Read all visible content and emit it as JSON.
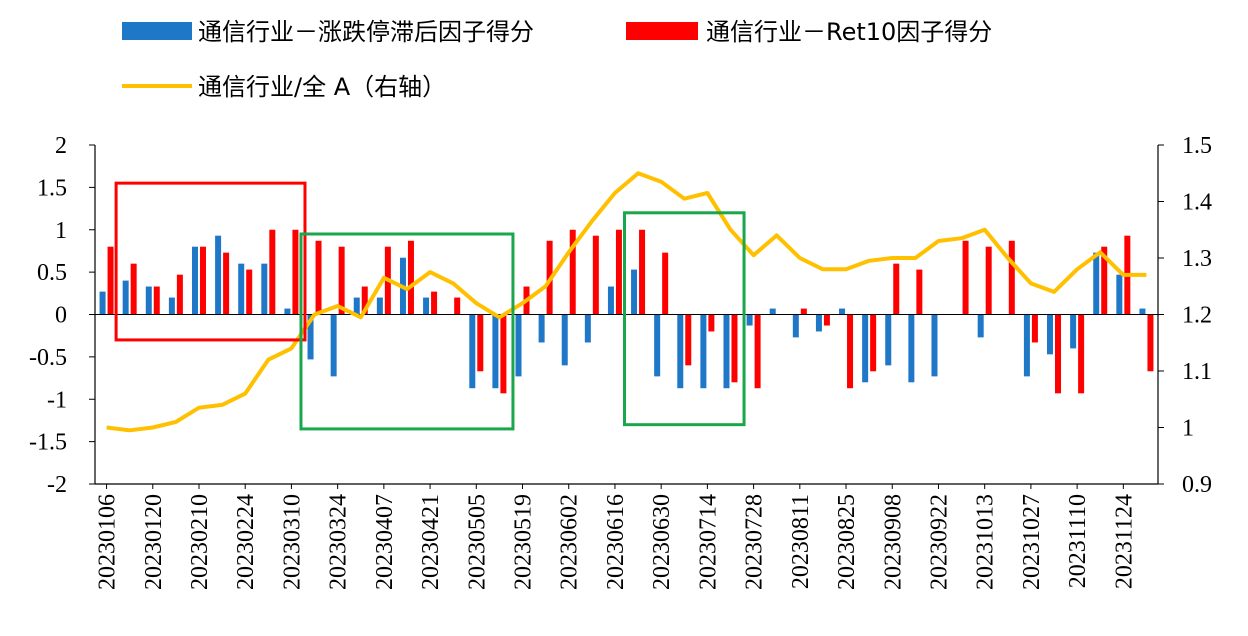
{
  "chart_data": {
    "type": "bar",
    "title": "",
    "legend": [
      {
        "label": "通信行业－涨跌停滞后因子得分",
        "color": "#1f77c8",
        "marker": "bar"
      },
      {
        "label": "通信行业－Ret10因子得分",
        "color": "#ff0000",
        "marker": "bar"
      },
      {
        "label": "通信行业/全 A（右轴）",
        "color": "#ffc000",
        "marker": "line"
      }
    ],
    "y_left": {
      "min": -2,
      "max": 2,
      "ticks": [
        "2",
        "1.5",
        "1",
        "0.5",
        "0",
        "-0.5",
        "-1",
        "-1.5",
        "-2"
      ]
    },
    "y_right": {
      "min": 0.9,
      "max": 1.5,
      "ticks": [
        "1.5",
        "1.4",
        "1.3",
        "1.2",
        "1.1",
        "1",
        "0.9"
      ]
    },
    "x_tick_labels": [
      "20230106",
      "20230120",
      "20230210",
      "20230224",
      "20230310",
      "20230324",
      "20230407",
      "20230421",
      "20230505",
      "20230519",
      "20230602",
      "20230616",
      "20230630",
      "20230714",
      "20230728",
      "20230811",
      "20230825",
      "20230908",
      "20230922",
      "20231013",
      "20231027",
      "20231110",
      "20231124"
    ],
    "periods": 46,
    "series": [
      {
        "name": "通信行业－涨跌停滞后因子得分",
        "axis": "left",
        "color": "#1f77c8",
        "values": [
          0.27,
          0.4,
          0.33,
          0.2,
          0.8,
          0.93,
          0.6,
          0.6,
          0.07,
          -0.53,
          -0.73,
          0.2,
          0.2,
          0.67,
          0.2,
          0.0,
          -0.87,
          -0.87,
          -0.73,
          -0.33,
          -0.6,
          -0.33,
          0.33,
          0.53,
          -0.73,
          -0.87,
          -0.87,
          -0.87,
          -0.13,
          0.07,
          -0.27,
          -0.2,
          0.07,
          -0.8,
          -0.6,
          -0.8,
          -0.73,
          0.0,
          -0.27,
          0.0,
          -0.73,
          -0.47,
          -0.4,
          0.73,
          0.47,
          0.07
        ]
      },
      {
        "name": "通信行业－Ret10因子得分",
        "axis": "left",
        "color": "#ff0000",
        "values": [
          0.8,
          0.6,
          0.33,
          0.47,
          0.8,
          0.73,
          0.53,
          1.0,
          1.0,
          0.87,
          0.8,
          0.33,
          0.8,
          0.87,
          0.27,
          0.2,
          -0.67,
          -0.93,
          0.33,
          0.87,
          1.0,
          0.93,
          1.0,
          1.0,
          0.73,
          -0.6,
          -0.2,
          -0.8,
          -0.87,
          0.0,
          0.07,
          -0.13,
          -0.87,
          -0.67,
          0.6,
          0.53,
          0.0,
          0.87,
          0.8,
          0.87,
          -0.33,
          -0.93,
          -0.93,
          0.8,
          0.93,
          -0.67
        ]
      },
      {
        "name": "通信行业/全 A（右轴）",
        "axis": "right",
        "color": "#ffc000",
        "type": "line",
        "values": [
          1.0,
          0.995,
          1.0,
          1.01,
          1.035,
          1.04,
          1.06,
          1.12,
          1.14,
          1.2,
          1.215,
          1.195,
          1.265,
          1.245,
          1.275,
          1.255,
          1.22,
          1.195,
          1.22,
          1.25,
          1.31,
          1.365,
          1.415,
          1.45,
          1.435,
          1.405,
          1.415,
          1.35,
          1.305,
          1.34,
          1.3,
          1.28,
          1.28,
          1.295,
          1.3,
          1.3,
          1.33,
          1.335,
          1.35,
          1.3,
          1.255,
          1.24,
          1.28,
          1.31,
          1.27,
          1.27
        ]
      }
    ],
    "annotations": [
      {
        "shape": "rect",
        "color": "#ff0000",
        "from_period": 1,
        "to_period": 8,
        "y_top": 1.55,
        "y_bottom": -0.3
      },
      {
        "shape": "rect",
        "color": "#1aa64a",
        "from_period": 9,
        "to_period": 17,
        "y_top": 0.95,
        "y_bottom": -1.35
      },
      {
        "shape": "rect",
        "color": "#1aa64a",
        "from_period": 23,
        "to_period": 27,
        "y_top": 1.2,
        "y_bottom": -1.3
      }
    ]
  }
}
